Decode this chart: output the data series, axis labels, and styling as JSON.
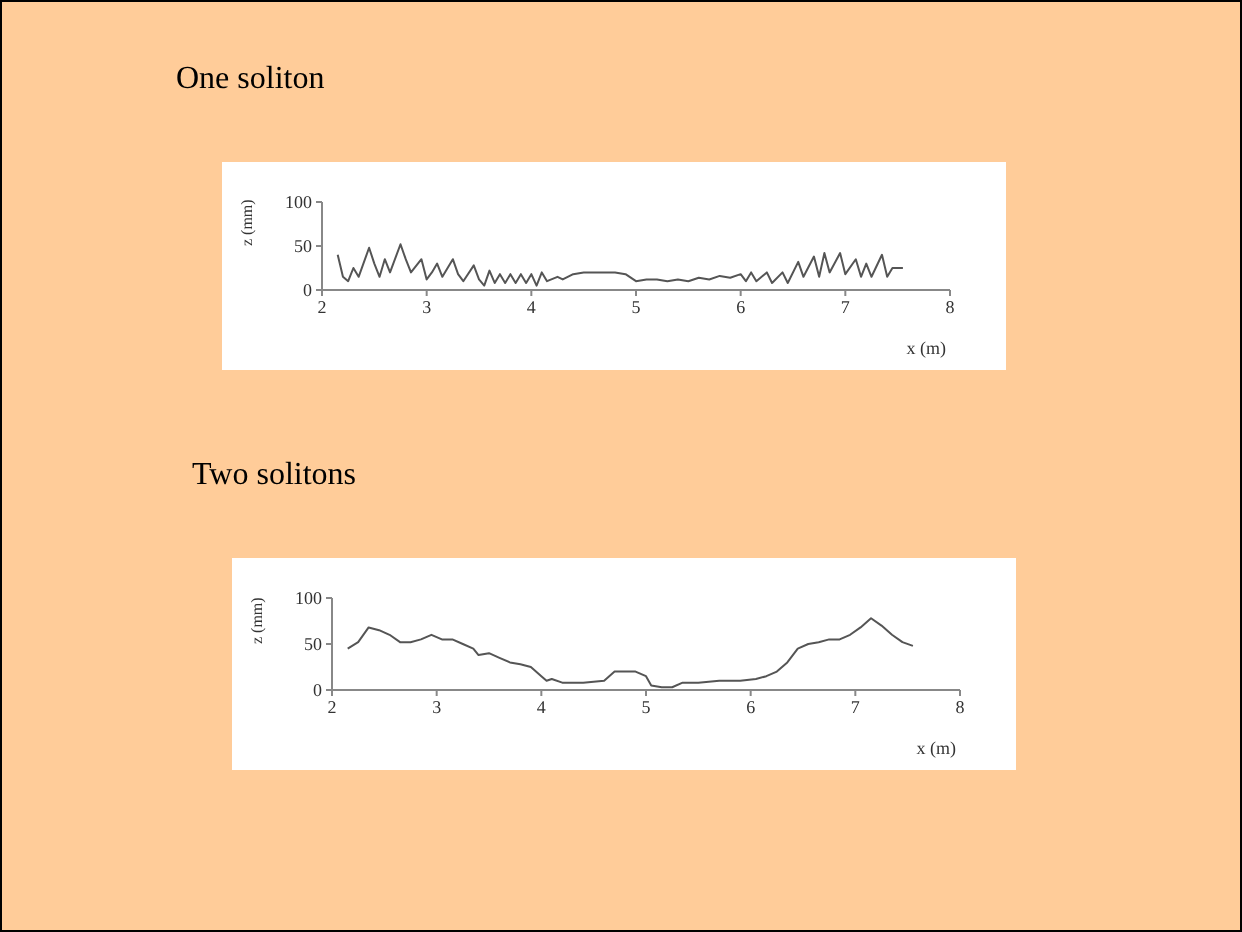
{
  "chart_data": [
    {
      "type": "line",
      "title": "One soliton",
      "xlabel": "x (m)",
      "ylabel": "z (mm)",
      "xlim": [
        2,
        8
      ],
      "xticks": [
        2,
        3,
        4,
        5,
        6,
        7,
        8
      ],
      "ylim": [
        0,
        100
      ],
      "yticks": [
        0,
        50,
        100
      ],
      "grid": false,
      "legend": false,
      "marker": "none",
      "line_style": "solid",
      "x": [
        2.15,
        2.2,
        2.25,
        2.3,
        2.35,
        2.45,
        2.5,
        2.55,
        2.6,
        2.65,
        2.75,
        2.8,
        2.85,
        2.95,
        3.0,
        3.05,
        3.1,
        3.15,
        3.25,
        3.3,
        3.35,
        3.45,
        3.5,
        3.55,
        3.6,
        3.65,
        3.7,
        3.75,
        3.8,
        3.85,
        3.9,
        3.95,
        4.0,
        4.05,
        4.1,
        4.15,
        4.25,
        4.3,
        4.4,
        4.5,
        4.6,
        4.7,
        4.8,
        4.9,
        5.0,
        5.1,
        5.2,
        5.3,
        5.4,
        5.5,
        5.6,
        5.7,
        5.8,
        5.9,
        6.0,
        6.05,
        6.1,
        6.15,
        6.25,
        6.3,
        6.4,
        6.45,
        6.55,
        6.6,
        6.7,
        6.75,
        6.8,
        6.85,
        6.95,
        7.0,
        7.1,
        7.15,
        7.2,
        7.25,
        7.35,
        7.4,
        7.45,
        7.55
      ],
      "series": [
        {
          "color": "#555555",
          "values": [
            40,
            15,
            10,
            25,
            15,
            48,
            30,
            15,
            35,
            20,
            52,
            35,
            20,
            35,
            12,
            20,
            30,
            15,
            35,
            18,
            10,
            28,
            12,
            5,
            22,
            8,
            18,
            8,
            18,
            8,
            18,
            8,
            18,
            5,
            20,
            10,
            15,
            12,
            18,
            20,
            20,
            20,
            20,
            18,
            10,
            12,
            12,
            10,
            12,
            10,
            14,
            12,
            16,
            14,
            18,
            10,
            20,
            10,
            20,
            8,
            20,
            8,
            32,
            15,
            38,
            15,
            42,
            20,
            42,
            18,
            35,
            15,
            30,
            15,
            40,
            15,
            25,
            25
          ]
        }
      ]
    },
    {
      "type": "line",
      "title": "Two solitons",
      "xlabel": "x (m)",
      "ylabel": "z (mm)",
      "xlim": [
        2,
        8
      ],
      "xticks": [
        2,
        3,
        4,
        5,
        6,
        7,
        8
      ],
      "ylim": [
        0,
        100
      ],
      "yticks": [
        0,
        50,
        100
      ],
      "grid": false,
      "legend": false,
      "marker": "none",
      "line_style": "solid",
      "x": [
        2.15,
        2.25,
        2.35,
        2.45,
        2.55,
        2.65,
        2.75,
        2.85,
        2.95,
        3.05,
        3.15,
        3.25,
        3.35,
        3.4,
        3.5,
        3.6,
        3.7,
        3.8,
        3.9,
        4.0,
        4.05,
        4.1,
        4.2,
        4.4,
        4.6,
        4.7,
        4.8,
        4.9,
        5.0,
        5.05,
        5.15,
        5.25,
        5.35,
        5.5,
        5.7,
        5.9,
        6.05,
        6.15,
        6.25,
        6.35,
        6.45,
        6.55,
        6.65,
        6.75,
        6.85,
        6.95,
        7.05,
        7.15,
        7.25,
        7.35,
        7.45,
        7.55
      ],
      "series": [
        {
          "color": "#555555",
          "values": [
            45,
            52,
            68,
            65,
            60,
            52,
            52,
            55,
            60,
            55,
            55,
            50,
            45,
            38,
            40,
            35,
            30,
            28,
            25,
            15,
            10,
            12,
            8,
            8,
            10,
            20,
            20,
            20,
            15,
            5,
            3,
            3,
            8,
            8,
            10,
            10,
            12,
            15,
            20,
            30,
            45,
            50,
            52,
            55,
            55,
            60,
            68,
            78,
            70,
            60,
            52,
            48
          ]
        }
      ]
    }
  ]
}
